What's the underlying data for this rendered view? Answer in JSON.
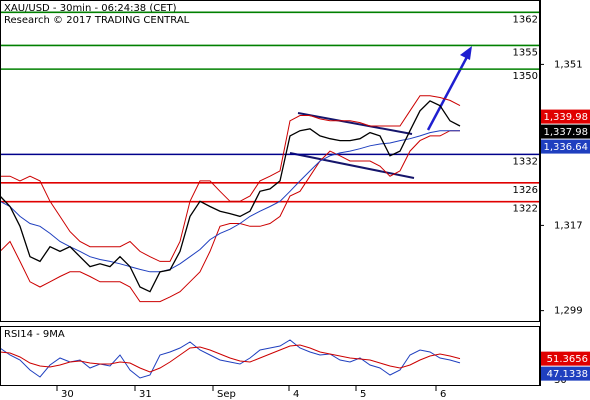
{
  "header": {
    "title": "XAU/USD - 30min - 06:24:38 (CET)",
    "credit": "Research © 2017 TRADING CENTRAL"
  },
  "chart_data": [
    {
      "type": "line",
      "xlim": [
        0,
        54
      ],
      "xticks": [
        {
          "value": 5.7,
          "label": "30"
        },
        {
          "value": 13.5,
          "label": "31"
        },
        {
          "value": 21.3,
          "label": "Sep"
        },
        {
          "value": 28.9,
          "label": "4"
        },
        {
          "value": 35.6,
          "label": "5"
        },
        {
          "value": 43.6,
          "label": "6"
        }
      ],
      "ylim": [
        1296.6,
        1364.6
      ],
      "yticks": [
        {
          "value": 1299,
          "label": "1,299"
        },
        {
          "value": 1317,
          "label": "1,317"
        },
        {
          "value": 1351,
          "label": "1,351"
        }
      ],
      "series": [
        {
          "color": "#cc0000",
          "values": [
            1327.4,
            1327.4,
            1326.4,
            1327.4,
            1326.4,
            1322.1,
            1318.9,
            1315.7,
            1313.6,
            1312.5,
            1312.5,
            1312.5,
            1312.5,
            1313.6,
            1311.5,
            1310.4,
            1309.4,
            1309.4,
            1313.6,
            1322.1,
            1326.4,
            1326.4,
            1324.2,
            1322.1,
            1322.1,
            1323.2,
            1326.4,
            1327.4,
            1328.5,
            1339.1,
            1340.2,
            1340.2,
            1339.5,
            1339.1,
            1339.1,
            1339.1,
            1338.7,
            1338.0,
            1338.0,
            1338.0,
            1338.0,
            1341.2,
            1344.4,
            1344.4,
            1344.0,
            1343.4,
            1342.3
          ]
        },
        {
          "color": "#cc0000",
          "values": [
            1311.5,
            1313.6,
            1309.4,
            1305.1,
            1304.0,
            1305.1,
            1306.2,
            1307.2,
            1307.2,
            1306.2,
            1305.1,
            1305.1,
            1305.1,
            1304.0,
            1300.9,
            1300.9,
            1300.9,
            1301.9,
            1303.0,
            1305.1,
            1307.2,
            1311.5,
            1316.8,
            1317.4,
            1317.4,
            1316.8,
            1316.8,
            1317.4,
            1318.9,
            1323.2,
            1324.2,
            1327.4,
            1330.6,
            1332.7,
            1331.7,
            1330.6,
            1330.6,
            1330.6,
            1329.5,
            1327.4,
            1328.5,
            1332.7,
            1334.9,
            1335.9,
            1335.9,
            1337.0,
            1337.0
          ]
        },
        {
          "color": "#1f3fbf",
          "values": [
            1322.1,
            1321.0,
            1318.9,
            1317.4,
            1316.8,
            1315.3,
            1313.6,
            1312.5,
            1311.5,
            1310.4,
            1309.8,
            1309.4,
            1308.9,
            1308.3,
            1307.7,
            1307.2,
            1307.2,
            1307.7,
            1308.9,
            1310.4,
            1311.9,
            1314.0,
            1315.3,
            1316.2,
            1317.4,
            1318.9,
            1320.0,
            1321.0,
            1322.1,
            1324.2,
            1326.4,
            1328.5,
            1330.6,
            1331.7,
            1332.3,
            1332.7,
            1333.2,
            1333.8,
            1334.2,
            1334.4,
            1334.9,
            1335.3,
            1335.9,
            1336.6,
            1337.0,
            1337.0,
            1337.0
          ]
        },
        {
          "color": "#000000",
          "values": [
            1323.2,
            1321.0,
            1316.8,
            1310.4,
            1309.4,
            1312.5,
            1311.5,
            1312.5,
            1310.4,
            1308.3,
            1308.9,
            1308.3,
            1310.4,
            1308.3,
            1304.0,
            1303.0,
            1307.2,
            1307.6,
            1311.5,
            1318.9,
            1322.1,
            1321.0,
            1320.0,
            1319.5,
            1318.9,
            1320.0,
            1324.2,
            1324.7,
            1326.4,
            1335.9,
            1337.0,
            1337.4,
            1335.9,
            1335.3,
            1334.9,
            1334.9,
            1335.3,
            1336.6,
            1335.9,
            1331.7,
            1332.7,
            1337.0,
            1341.2,
            1343.3,
            1342.3,
            1339.1,
            1338.0
          ]
        }
      ],
      "hlines": [
        {
          "value": 1362,
          "color": "#008000"
        },
        {
          "value": 1355,
          "color": "#008000"
        },
        {
          "value": 1350,
          "color": "#008000"
        },
        {
          "value": 1332,
          "color": "#00008b"
        },
        {
          "value": 1326,
          "color": "#e00000"
        },
        {
          "value": 1322,
          "color": "#e00000"
        }
      ],
      "tags": [
        {
          "value": 1339.98,
          "label": "1,339.98",
          "color": "#e00000"
        },
        {
          "value": 1337.98,
          "label": "1,337.98",
          "color": "#000000"
        },
        {
          "value": 1336.64,
          "label": "1,336.64",
          "color": "#1f3fbf"
        }
      ]
    },
    {
      "type": "line",
      "title": "RSI14 - 9MA",
      "xlim": [
        0,
        54
      ],
      "ylim": [
        24,
        84
      ],
      "yticks": [
        30
      ],
      "series": [
        {
          "color": "#1f3fbf",
          "values": [
            62,
            55,
            50,
            40,
            33,
            45,
            52,
            48,
            50,
            42,
            46,
            44,
            55,
            40,
            32,
            35,
            55,
            58,
            62,
            68,
            60,
            55,
            50,
            48,
            46,
            52,
            60,
            62,
            64,
            70,
            62,
            58,
            55,
            56,
            50,
            48,
            52,
            45,
            42,
            35,
            40,
            55,
            60,
            58,
            52,
            50,
            47.1
          ]
        },
        {
          "color": "#cc0000",
          "values": [
            58,
            57,
            53,
            47,
            44,
            43,
            45,
            48,
            49,
            47,
            46,
            46,
            48,
            47,
            42,
            38,
            42,
            48,
            55,
            62,
            63,
            60,
            56,
            52,
            49,
            48,
            52,
            56,
            60,
            64,
            65,
            62,
            58,
            56,
            54,
            52,
            51,
            50,
            47,
            44,
            42,
            45,
            50,
            54,
            56,
            54,
            51.4
          ]
        }
      ],
      "tags": [
        {
          "value": 51.3656,
          "color": "#e00000"
        },
        {
          "value": 47.1338,
          "color": "#1f3fbf"
        }
      ]
    }
  ]
}
